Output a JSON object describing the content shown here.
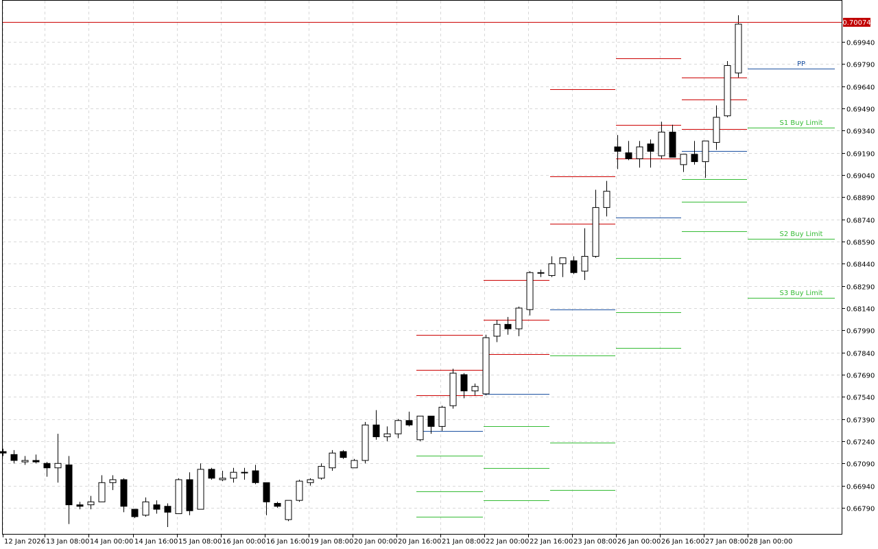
{
  "chart_data": {
    "type": "candlestick",
    "ylim": [
      0.6662,
      0.702
    ],
    "grid": true,
    "price_ticks": [
      "0.69940",
      "0.69790",
      "0.69640",
      "0.69490",
      "0.69340",
      "0.69190",
      "0.69040",
      "0.68890",
      "0.68740",
      "0.68590",
      "0.68440",
      "0.68290",
      "0.68140",
      "0.67990",
      "0.67840",
      "0.67690",
      "0.67540",
      "0.67390",
      "0.67240",
      "0.67090",
      "0.66940",
      "0.66790"
    ],
    "time_ticks": [
      "12 Jan 2026",
      "13 Jan 08:00",
      "14 Jan 00:00",
      "14 Jan 16:00",
      "15 Jan 08:00",
      "16 Jan 00:00",
      "16 Jan 16:00",
      "19 Jan 08:00",
      "20 Jan 00:00",
      "20 Jan 16:00",
      "21 Jan 08:00",
      "22 Jan 00:00",
      "22 Jan 16:00",
      "23 Jan 08:00",
      "26 Jan 00:00",
      "26 Jan 16:00",
      "27 Jan 08:00",
      "28 Jan 00:00"
    ],
    "current_price": "0.70074",
    "colors": {
      "resistance": "#cc0000",
      "pivot": "#1a4fa0",
      "support": "#33bb33",
      "current": "#cc0000",
      "grid": "#d8d8d8"
    },
    "candles": [
      {
        "o": 0.6717,
        "h": 0.6719,
        "l": 0.6714,
        "c": 0.6716
      },
      {
        "o": 0.6715,
        "h": 0.6718,
        "l": 0.6709,
        "c": 0.6711
      },
      {
        "o": 0.671,
        "h": 0.6714,
        "l": 0.6708,
        "c": 0.6711
      },
      {
        "o": 0.6711,
        "h": 0.6715,
        "l": 0.6709,
        "c": 0.671
      },
      {
        "o": 0.6709,
        "h": 0.671,
        "l": 0.67,
        "c": 0.6706
      },
      {
        "o": 0.6706,
        "h": 0.6729,
        "l": 0.6696,
        "c": 0.6709
      },
      {
        "o": 0.6708,
        "h": 0.6714,
        "l": 0.6668,
        "c": 0.6681
      },
      {
        "o": 0.6681,
        "h": 0.6683,
        "l": 0.6678,
        "c": 0.668
      },
      {
        "o": 0.6681,
        "h": 0.6687,
        "l": 0.6678,
        "c": 0.6683
      },
      {
        "o": 0.6683,
        "h": 0.6701,
        "l": 0.6683,
        "c": 0.6696
      },
      {
        "o": 0.6696,
        "h": 0.6701,
        "l": 0.6691,
        "c": 0.6698
      },
      {
        "o": 0.6698,
        "h": 0.6699,
        "l": 0.6676,
        "c": 0.668
      },
      {
        "o": 0.6678,
        "h": 0.6678,
        "l": 0.6672,
        "c": 0.6673
      },
      {
        "o": 0.6674,
        "h": 0.6686,
        "l": 0.6673,
        "c": 0.6683
      },
      {
        "o": 0.6681,
        "h": 0.6684,
        "l": 0.6675,
        "c": 0.6678
      },
      {
        "o": 0.668,
        "h": 0.6682,
        "l": 0.6666,
        "c": 0.6676
      },
      {
        "o": 0.6675,
        "h": 0.6699,
        "l": 0.6675,
        "c": 0.6698
      },
      {
        "o": 0.6698,
        "h": 0.6703,
        "l": 0.6674,
        "c": 0.6677
      },
      {
        "o": 0.6678,
        "h": 0.6709,
        "l": 0.6678,
        "c": 0.6705
      },
      {
        "o": 0.6705,
        "h": 0.6706,
        "l": 0.6698,
        "c": 0.6699
      },
      {
        "o": 0.6698,
        "h": 0.6704,
        "l": 0.6697,
        "c": 0.6699
      },
      {
        "o": 0.6699,
        "h": 0.6706,
        "l": 0.6696,
        "c": 0.6703
      },
      {
        "o": 0.6703,
        "h": 0.6706,
        "l": 0.6698,
        "c": 0.6703
      },
      {
        "o": 0.6704,
        "h": 0.6708,
        "l": 0.6695,
        "c": 0.6696
      },
      {
        "o": 0.6696,
        "h": 0.6696,
        "l": 0.6674,
        "c": 0.6683
      },
      {
        "o": 0.6682,
        "h": 0.6683,
        "l": 0.6679,
        "c": 0.668
      },
      {
        "o": 0.6671,
        "h": 0.6683,
        "l": 0.667,
        "c": 0.6684
      },
      {
        "o": 0.6684,
        "h": 0.6698,
        "l": 0.6683,
        "c": 0.6697
      },
      {
        "o": 0.6696,
        "h": 0.6699,
        "l": 0.6694,
        "c": 0.6698
      },
      {
        "o": 0.6699,
        "h": 0.6709,
        "l": 0.6698,
        "c": 0.6707
      },
      {
        "o": 0.6706,
        "h": 0.6718,
        "l": 0.6704,
        "c": 0.6716
      },
      {
        "o": 0.6717,
        "h": 0.6718,
        "l": 0.6712,
        "c": 0.6713
      },
      {
        "o": 0.6706,
        "h": 0.6712,
        "l": 0.6706,
        "c": 0.6711
      },
      {
        "o": 0.6711,
        "h": 0.6737,
        "l": 0.6709,
        "c": 0.6735
      },
      {
        "o": 0.6735,
        "h": 0.6745,
        "l": 0.6725,
        "c": 0.6727
      },
      {
        "o": 0.6727,
        "h": 0.6734,
        "l": 0.6724,
        "c": 0.6729
      },
      {
        "o": 0.6729,
        "h": 0.6739,
        "l": 0.6726,
        "c": 0.6738
      },
      {
        "o": 0.6738,
        "h": 0.6744,
        "l": 0.6734,
        "c": 0.6735
      },
      {
        "o": 0.6725,
        "h": 0.6741,
        "l": 0.6724,
        "c": 0.6741
      },
      {
        "o": 0.6741,
        "h": 0.6741,
        "l": 0.6729,
        "c": 0.6734
      },
      {
        "o": 0.6734,
        "h": 0.6748,
        "l": 0.6731,
        "c": 0.6747
      },
      {
        "o": 0.6748,
        "h": 0.6773,
        "l": 0.6746,
        "c": 0.677
      },
      {
        "o": 0.6769,
        "h": 0.677,
        "l": 0.6753,
        "c": 0.6758
      },
      {
        "o": 0.6758,
        "h": 0.6763,
        "l": 0.6755,
        "c": 0.6761
      },
      {
        "o": 0.6756,
        "h": 0.6796,
        "l": 0.6755,
        "c": 0.6794
      },
      {
        "o": 0.6795,
        "h": 0.6806,
        "l": 0.6791,
        "c": 0.6803
      },
      {
        "o": 0.6803,
        "h": 0.6808,
        "l": 0.6796,
        "c": 0.68
      },
      {
        "o": 0.68,
        "h": 0.6815,
        "l": 0.6795,
        "c": 0.6814
      },
      {
        "o": 0.6813,
        "h": 0.6839,
        "l": 0.6809,
        "c": 0.6838
      },
      {
        "o": 0.6838,
        "h": 0.684,
        "l": 0.6835,
        "c": 0.6838
      },
      {
        "o": 0.6836,
        "h": 0.6849,
        "l": 0.6835,
        "c": 0.6844
      },
      {
        "o": 0.6844,
        "h": 0.6848,
        "l": 0.6835,
        "c": 0.6848
      },
      {
        "o": 0.6846,
        "h": 0.6849,
        "l": 0.6837,
        "c": 0.6838
      },
      {
        "o": 0.6839,
        "h": 0.6868,
        "l": 0.6833,
        "c": 0.6849
      },
      {
        "o": 0.6849,
        "h": 0.6894,
        "l": 0.6848,
        "c": 0.6882
      },
      {
        "o": 0.6882,
        "h": 0.69,
        "l": 0.6876,
        "c": 0.6893
      },
      {
        "o": 0.6923,
        "h": 0.6931,
        "l": 0.6908,
        "c": 0.692
      },
      {
        "o": 0.6919,
        "h": 0.6927,
        "l": 0.6914,
        "c": 0.6915
      },
      {
        "o": 0.6915,
        "h": 0.6927,
        "l": 0.6909,
        "c": 0.6923
      },
      {
        "o": 0.6925,
        "h": 0.6928,
        "l": 0.6909,
        "c": 0.692
      },
      {
        "o": 0.6917,
        "h": 0.694,
        "l": 0.6915,
        "c": 0.6933
      },
      {
        "o": 0.6933,
        "h": 0.6938,
        "l": 0.6916,
        "c": 0.6916
      },
      {
        "o": 0.6911,
        "h": 0.6918,
        "l": 0.6906,
        "c": 0.6918
      },
      {
        "o": 0.6918,
        "h": 0.6927,
        "l": 0.6911,
        "c": 0.6913
      },
      {
        "o": 0.6913,
        "h": 0.6927,
        "l": 0.6902,
        "c": 0.6927
      },
      {
        "o": 0.6926,
        "h": 0.6951,
        "l": 0.6921,
        "c": 0.6943
      },
      {
        "o": 0.6944,
        "h": 0.6981,
        "l": 0.6943,
        "c": 0.6978
      },
      {
        "o": 0.6973,
        "h": 0.7012,
        "l": 0.697,
        "c": 0.7006
      }
    ],
    "levels": [
      {
        "kind": "pivot",
        "x_from": 607,
        "x_to": 704,
        "value": 0.6731
      },
      {
        "kind": "support",
        "x_from": 607,
        "x_to": 704,
        "value": 0.6714
      },
      {
        "kind": "support",
        "x_from": 607,
        "x_to": 704,
        "value": 0.669
      },
      {
        "kind": "support",
        "x_from": 607,
        "x_to": 704,
        "value": 0.6673
      },
      {
        "kind": "resistance",
        "x_from": 607,
        "x_to": 704,
        "value": 0.6755
      },
      {
        "kind": "resistance",
        "x_from": 607,
        "x_to": 704,
        "value": 0.6772
      },
      {
        "kind": "resistance",
        "x_from": 607,
        "x_to": 704,
        "value": 0.6796
      },
      {
        "kind": "pivot",
        "x_from": 705,
        "x_to": 801,
        "value": 0.6756
      },
      {
        "kind": "support",
        "x_from": 705,
        "x_to": 801,
        "value": 0.6734
      },
      {
        "kind": "support",
        "x_from": 705,
        "x_to": 801,
        "value": 0.6706
      },
      {
        "kind": "support",
        "x_from": 705,
        "x_to": 801,
        "value": 0.6684
      },
      {
        "kind": "resistance",
        "x_from": 705,
        "x_to": 801,
        "value": 0.6783
      },
      {
        "kind": "resistance",
        "x_from": 705,
        "x_to": 801,
        "value": 0.6806
      },
      {
        "kind": "resistance",
        "x_from": 705,
        "x_to": 801,
        "value": 0.6833
      },
      {
        "kind": "pivot",
        "x_from": 802,
        "x_to": 897,
        "value": 0.6813
      },
      {
        "kind": "support",
        "x_from": 802,
        "x_to": 897,
        "value": 0.6782
      },
      {
        "kind": "support",
        "x_from": 802,
        "x_to": 897,
        "value": 0.6723
      },
      {
        "kind": "support",
        "x_from": 802,
        "x_to": 897,
        "value": 0.6691
      },
      {
        "kind": "resistance",
        "x_from": 802,
        "x_to": 897,
        "value": 0.6871
      },
      {
        "kind": "resistance",
        "x_from": 802,
        "x_to": 897,
        "value": 0.6903
      },
      {
        "kind": "resistance",
        "x_from": 802,
        "x_to": 897,
        "value": 0.6962
      },
      {
        "kind": "pivot",
        "x_from": 898,
        "x_to": 993,
        "value": 0.6875
      },
      {
        "kind": "support",
        "x_from": 898,
        "x_to": 993,
        "value": 0.6848
      },
      {
        "kind": "support",
        "x_from": 898,
        "x_to": 993,
        "value": 0.6811
      },
      {
        "kind": "support",
        "x_from": 898,
        "x_to": 993,
        "value": 0.6787
      },
      {
        "kind": "resistance",
        "x_from": 898,
        "x_to": 993,
        "value": 0.6915
      },
      {
        "kind": "resistance",
        "x_from": 898,
        "x_to": 993,
        "value": 0.6938
      },
      {
        "kind": "resistance",
        "x_from": 898,
        "x_to": 993,
        "value": 0.6983
      },
      {
        "kind": "pivot",
        "x_from": 994,
        "x_to": 1089,
        "value": 0.692
      },
      {
        "kind": "support",
        "x_from": 994,
        "x_to": 1089,
        "value": 0.6901
      },
      {
        "kind": "support",
        "x_from": 994,
        "x_to": 1089,
        "value": 0.6886
      },
      {
        "kind": "support",
        "x_from": 994,
        "x_to": 1089,
        "value": 0.6866
      },
      {
        "kind": "resistance",
        "x_from": 994,
        "x_to": 1089,
        "value": 0.6935
      },
      {
        "kind": "resistance",
        "x_from": 994,
        "x_to": 1089,
        "value": 0.6955
      },
      {
        "kind": "resistance",
        "x_from": 994,
        "x_to": 1089,
        "value": 0.697
      },
      {
        "kind": "pivot",
        "x_from": 1090,
        "x_to": 1217,
        "value": 0.6976
      },
      {
        "kind": "support",
        "x_from": 1090,
        "x_to": 1217,
        "value": 0.6936
      },
      {
        "kind": "support",
        "x_from": 1090,
        "x_to": 1217,
        "value": 0.6861
      },
      {
        "kind": "support",
        "x_from": 1090,
        "x_to": 1217,
        "value": 0.6821
      }
    ],
    "annotations": [
      {
        "text": "PP",
        "kind": "pivot",
        "value": 0.6976
      },
      {
        "text": "S1 Buy Limit",
        "kind": "support",
        "value": 0.6936
      },
      {
        "text": "S2 Buy Limit",
        "kind": "support",
        "value": 0.6861
      },
      {
        "text": "S3 Buy Limit",
        "kind": "support",
        "value": 0.6821
      }
    ]
  }
}
